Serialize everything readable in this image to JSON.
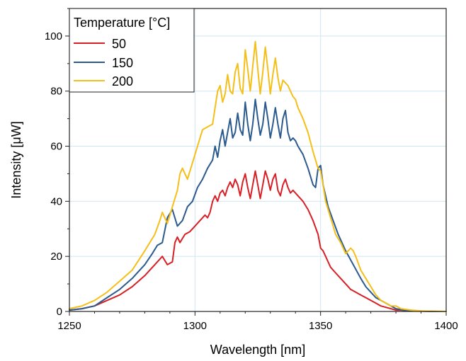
{
  "chart_data": {
    "type": "line",
    "xlabel": "Wavelength [nm]",
    "ylabel": "Intensity [μW]",
    "xlim": [
      1250,
      1400
    ],
    "ylim": [
      0,
      110
    ],
    "xticks": [
      1250,
      1300,
      1350,
      1400
    ],
    "yticks": [
      0,
      20,
      40,
      60,
      80,
      100
    ],
    "grid": true,
    "legend": {
      "title": "Temperature [°C]",
      "placement": "top-left"
    },
    "colors": {
      "50": "#d81f26",
      "150": "#2b5a8f",
      "200": "#f5bf1a"
    },
    "series": [
      {
        "name": "50",
        "x": [
          1250,
          1255,
          1260,
          1265,
          1270,
          1275,
          1280,
          1284,
          1286,
          1287,
          1289,
          1291,
          1292,
          1293,
          1294,
          1296,
          1298,
          1300,
          1302,
          1303,
          1304,
          1305,
          1306,
          1307,
          1308,
          1309,
          1310,
          1311,
          1312,
          1313,
          1314,
          1315,
          1316,
          1317,
          1318,
          1319,
          1320,
          1321,
          1322,
          1323,
          1324,
          1325,
          1326,
          1327,
          1328,
          1329,
          1330,
          1331,
          1332,
          1333,
          1334,
          1335,
          1336,
          1337,
          1338,
          1339,
          1340,
          1341,
          1343,
          1345,
          1347,
          1349,
          1350,
          1351,
          1352,
          1353,
          1354,
          1356,
          1358,
          1360,
          1362,
          1364,
          1366,
          1368,
          1370,
          1372,
          1374,
          1376,
          1378,
          1380,
          1382,
          1385,
          1388,
          1392,
          1396,
          1400
        ],
        "values": [
          0.5,
          1,
          2,
          4,
          6,
          9,
          13,
          17,
          19,
          20,
          17,
          18,
          25,
          27,
          25,
          28,
          29,
          31,
          33,
          34,
          35,
          34,
          36,
          40,
          42,
          40,
          43,
          44,
          42,
          45,
          47,
          45,
          48,
          46,
          42,
          47,
          50,
          45,
          41,
          46,
          51,
          46,
          41,
          46,
          51,
          48,
          44,
          48,
          50,
          44,
          42,
          46,
          48,
          45,
          43,
          44,
          43,
          42,
          40,
          37,
          33,
          28,
          23,
          22,
          20,
          18,
          16,
          14,
          12,
          10,
          8,
          7,
          6,
          5,
          4,
          3,
          2,
          1.5,
          1,
          0.5,
          0.5,
          0.2,
          0.2,
          0.1,
          0,
          0
        ]
      },
      {
        "name": "150",
        "x": [
          1250,
          1255,
          1260,
          1265,
          1270,
          1275,
          1280,
          1283,
          1285,
          1287,
          1289,
          1291,
          1293,
          1295,
          1297,
          1299,
          1301,
          1303,
          1305,
          1307,
          1308,
          1309,
          1310,
          1311,
          1312,
          1313,
          1314,
          1315,
          1316,
          1317,
          1318,
          1319,
          1320,
          1321,
          1322,
          1323,
          1324,
          1325,
          1326,
          1327,
          1328,
          1329,
          1330,
          1331,
          1332,
          1333,
          1334,
          1335,
          1336,
          1337,
          1338,
          1339,
          1340,
          1341,
          1343,
          1345,
          1347,
          1348,
          1349,
          1350,
          1351,
          1353,
          1355,
          1357,
          1360,
          1363,
          1366,
          1368,
          1370,
          1372,
          1374,
          1376,
          1378,
          1380,
          1383,
          1386,
          1390,
          1395,
          1400
        ],
        "values": [
          0.5,
          1,
          2,
          5,
          8,
          12,
          17,
          21,
          24,
          25,
          34,
          37,
          31,
          33,
          38,
          40,
          45,
          48,
          52,
          55,
          60,
          56,
          62,
          66,
          60,
          65,
          70,
          63,
          65,
          72,
          66,
          64,
          76,
          68,
          62,
          68,
          77,
          70,
          64,
          68,
          76,
          70,
          63,
          68,
          74,
          68,
          63,
          70,
          73,
          65,
          62,
          63,
          62,
          60,
          57,
          52,
          46,
          45,
          52,
          53,
          46,
          38,
          33,
          28,
          22,
          17,
          12,
          9,
          7,
          5,
          4,
          3,
          2,
          1,
          0.5,
          0.2,
          0.1,
          0,
          0
        ]
      },
      {
        "name": "200",
        "x": [
          1250,
          1255,
          1260,
          1265,
          1270,
          1275,
          1280,
          1284,
          1286,
          1287,
          1289,
          1290,
          1291,
          1293,
          1294,
          1295,
          1297,
          1299,
          1301,
          1303,
          1305,
          1307,
          1308,
          1309,
          1310,
          1311,
          1312,
          1313,
          1314,
          1315,
          1316,
          1317,
          1318,
          1319,
          1320,
          1321,
          1322,
          1323,
          1324,
          1325,
          1326,
          1327,
          1328,
          1329,
          1330,
          1331,
          1332,
          1333,
          1334,
          1335,
          1336,
          1337,
          1338,
          1339,
          1340,
          1341,
          1343,
          1345,
          1347,
          1349,
          1350,
          1351,
          1352,
          1354,
          1356,
          1358,
          1360,
          1362,
          1363,
          1364,
          1366,
          1368,
          1370,
          1372,
          1374,
          1376,
          1378,
          1380,
          1382,
          1386,
          1390,
          1395,
          1400
        ],
        "values": [
          1,
          2,
          4,
          7,
          11,
          15,
          22,
          28,
          33,
          36,
          32,
          35,
          38,
          44,
          50,
          52,
          48,
          54,
          60,
          66,
          67,
          68,
          74,
          80,
          82,
          76,
          79,
          86,
          80,
          79,
          87,
          90,
          81,
          79,
          95,
          88,
          80,
          89,
          98,
          88,
          79,
          87,
          96,
          88,
          79,
          86,
          92,
          85,
          80,
          84,
          83,
          82,
          80,
          78,
          77,
          74,
          70,
          65,
          58,
          52,
          51,
          46,
          40,
          34,
          28,
          25,
          21,
          23,
          22,
          20,
          15,
          12,
          9,
          6,
          4,
          3,
          2,
          2,
          1,
          0.5,
          0.2,
          0.1,
          0
        ]
      }
    ]
  }
}
